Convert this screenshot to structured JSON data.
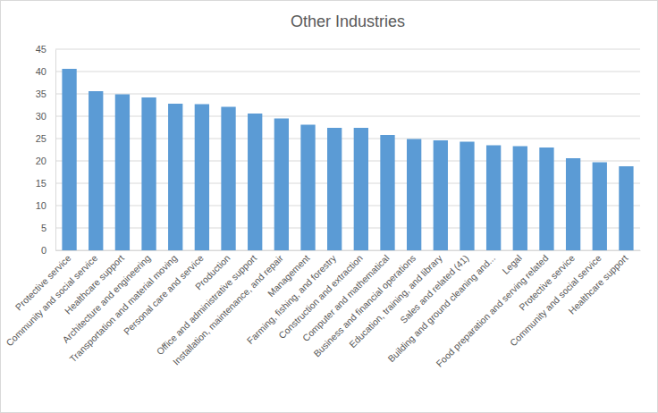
{
  "chart_data": {
    "type": "bar",
    "title": "Other Industries",
    "categories": [
      "Protective service",
      "Community and social service",
      "Healthcare support",
      "Architecture and engineering",
      "Transportation and material moving",
      "Personal care and service",
      "Production",
      "Office and administrative support",
      "Installation, maintenance, and repair",
      "Management",
      "Farming, fishing, and forestry",
      "Construction and extraction",
      "Computer and mathematical",
      "Business and financial operations",
      "Education, training, and library",
      "Sales and related (41)",
      "Building and ground cleaning and...",
      "Legal",
      "Food preparation and serving related",
      "Protective service",
      "Community and social service",
      "Healthcare support"
    ],
    "values": [
      40.6,
      35.6,
      34.9,
      34.2,
      32.8,
      32.7,
      32.1,
      30.6,
      29.5,
      28.1,
      27.4,
      27.4,
      25.8,
      24.9,
      24.6,
      24.3,
      23.5,
      23.3,
      23.0,
      20.6,
      19.7,
      18.8
    ],
    "color": "#5b9bd5",
    "ylim": [
      0,
      45
    ],
    "yticks": [
      0,
      5,
      10,
      15,
      20,
      25,
      30,
      35,
      40,
      45
    ],
    "grid": true
  }
}
